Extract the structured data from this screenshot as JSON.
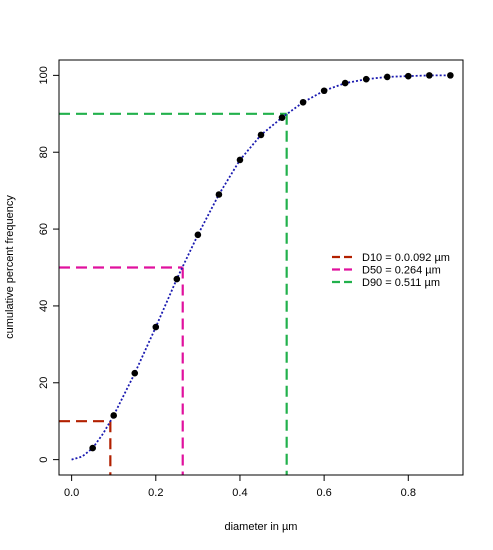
{
  "chart_data": {
    "type": "line",
    "title": "",
    "xlabel": "diameter in µm",
    "ylabel": "cumulative percent frequency",
    "xlim": [
      -0.03,
      0.93
    ],
    "ylim": [
      -4,
      104
    ],
    "x_ticks": [
      0.0,
      0.2,
      0.4,
      0.6,
      0.8
    ],
    "x_tick_labels": [
      "0.0",
      "0.2",
      "0.4",
      "0.6",
      "0.8"
    ],
    "y_ticks": [
      0,
      20,
      40,
      60,
      80,
      100
    ],
    "y_tick_labels": [
      "0",
      "20",
      "40",
      "60",
      "80",
      "100"
    ],
    "grid": false,
    "series": [
      {
        "kind": "points",
        "color": "#000000",
        "x": [
          0.05,
          0.1,
          0.15,
          0.2,
          0.25,
          0.3,
          0.35,
          0.4,
          0.45,
          0.5,
          0.55,
          0.6,
          0.65,
          0.7,
          0.75,
          0.8,
          0.85,
          0.9
        ],
        "y": [
          3.0,
          11.5,
          22.5,
          34.5,
          47.0,
          58.5,
          69.0,
          78.0,
          84.5,
          89.0,
          93.0,
          96.0,
          98.0,
          99.0,
          99.6,
          99.8,
          100.0,
          100.0
        ]
      },
      {
        "kind": "curve",
        "color": "#1a1ab0",
        "dash": "dotted",
        "x": [
          0.0,
          0.025,
          0.05,
          0.075,
          0.1,
          0.15,
          0.2,
          0.25,
          0.3,
          0.35,
          0.4,
          0.45,
          0.5,
          0.55,
          0.6,
          0.65,
          0.7,
          0.75,
          0.8,
          0.85,
          0.9
        ],
        "y": [
          0.0,
          0.8,
          3.0,
          6.8,
          11.5,
          22.5,
          34.5,
          47.0,
          58.5,
          69.0,
          78.0,
          84.5,
          89.0,
          93.0,
          96.0,
          98.0,
          99.0,
          99.6,
          99.8,
          100.0,
          100.0
        ]
      }
    ],
    "reference_lines": [
      {
        "label": "D10 = 0.0.092 µm",
        "x": 0.092,
        "y": 10,
        "color": "#b22000"
      },
      {
        "label": "D50 = 0.264 µm",
        "x": 0.264,
        "y": 50,
        "color": "#e0119e"
      },
      {
        "label": "D90 = 0.511 µm",
        "x": 0.511,
        "y": 90,
        "color": "#22b14c"
      }
    ],
    "legend_position": "right"
  }
}
